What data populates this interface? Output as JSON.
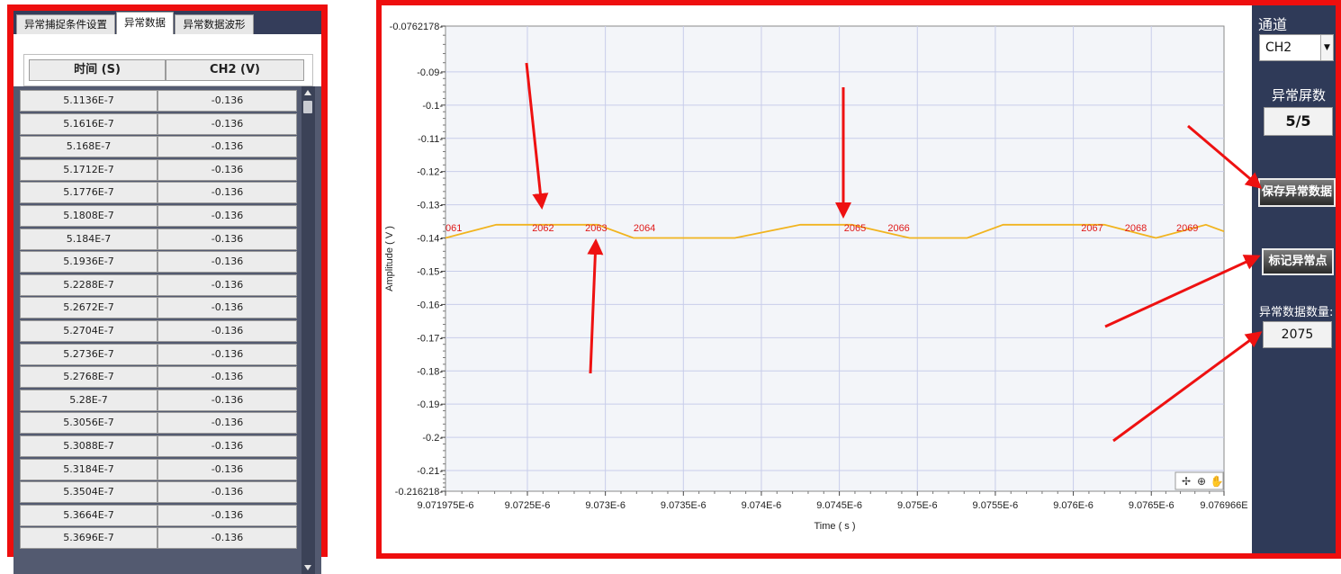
{
  "tabs": [
    {
      "label": "异常捕捉条件设置"
    },
    {
      "label": "异常数据"
    },
    {
      "label": "异常数据波形"
    }
  ],
  "table": {
    "columns": [
      "时间 (S)",
      "CH2 (V)"
    ],
    "rows": [
      [
        "5.1136E-7",
        "-0.136"
      ],
      [
        "5.1616E-7",
        "-0.136"
      ],
      [
        "5.168E-7",
        "-0.136"
      ],
      [
        "5.1712E-7",
        "-0.136"
      ],
      [
        "5.1776E-7",
        "-0.136"
      ],
      [
        "5.1808E-7",
        "-0.136"
      ],
      [
        "5.184E-7",
        "-0.136"
      ],
      [
        "5.1936E-7",
        "-0.136"
      ],
      [
        "5.2288E-7",
        "-0.136"
      ],
      [
        "5.2672E-7",
        "-0.136"
      ],
      [
        "5.2704E-7",
        "-0.136"
      ],
      [
        "5.2736E-7",
        "-0.136"
      ],
      [
        "5.2768E-7",
        "-0.136"
      ],
      [
        "5.28E-7",
        "-0.136"
      ],
      [
        "5.3056E-7",
        "-0.136"
      ],
      [
        "5.3088E-7",
        "-0.136"
      ],
      [
        "5.3184E-7",
        "-0.136"
      ],
      [
        "5.3504E-7",
        "-0.136"
      ],
      [
        "5.3664E-7",
        "-0.136"
      ],
      [
        "5.3696E-7",
        "-0.136"
      ]
    ]
  },
  "chart_data": {
    "type": "line",
    "xlabel": "Time ( s )",
    "ylabel": "Amplitude ( V )",
    "xlim": [
      9.071975e-06,
      9.076966e-06
    ],
    "ylim": [
      -0.216218,
      -0.0762178
    ],
    "x_ticks": [
      "9.071975E-6",
      "9.0725E-6",
      "9.073E-6",
      "9.0735E-6",
      "9.074E-6",
      "9.0745E-6",
      "9.075E-6",
      "9.0755E-6",
      "9.076E-6",
      "9.0765E-6",
      "9.076966E"
    ],
    "y_ticks": [
      "-0.0762178",
      "-0.09",
      "-0.1",
      "-0.11",
      "-0.12",
      "-0.13",
      "-0.14",
      "-0.15",
      "-0.16",
      "-0.17",
      "-0.18",
      "-0.19",
      "-0.2",
      "-0.21",
      "-0.216218"
    ],
    "series": [
      {
        "color": "#f1b41f",
        "x": [
          9.071975e-06,
          9.0723e-06,
          9.07295e-06,
          9.07318e-06,
          9.07383e-06,
          9.07425e-06,
          9.07458e-06,
          9.07495e-06,
          9.07532e-06,
          9.07555e-06,
          9.07598e-06,
          9.0762e-06,
          9.07653e-06,
          9.07685e-06,
          9.076966e-06
        ],
        "y": [
          -0.14,
          -0.136,
          -0.136,
          -0.14,
          -0.14,
          -0.136,
          -0.136,
          -0.14,
          -0.14,
          -0.136,
          -0.136,
          -0.136,
          -0.14,
          -0.136,
          -0.138
        ]
      }
    ],
    "markers": [
      {
        "label": "061",
        "x": 9.071975e-06
      },
      {
        "label": "2062",
        "x": 9.07253e-06
      },
      {
        "label": "2063",
        "x": 9.07287e-06
      },
      {
        "label": "2064",
        "x": 9.07318e-06
      },
      {
        "label": "2065",
        "x": 9.07453e-06
      },
      {
        "label": "2066",
        "x": 9.07481e-06
      },
      {
        "label": "2067",
        "x": 9.07605e-06
      },
      {
        "label": "2068",
        "x": 9.07633e-06
      },
      {
        "label": "2069",
        "x": 9.07666e-06
      }
    ],
    "marker_color": "#e01a1a",
    "grid": true,
    "background": "#f3f5f9",
    "grid_color": "#c8cdea"
  },
  "palette_tools": [
    "✢",
    "⊕",
    "✋"
  ],
  "side": {
    "channel_label": "通道",
    "channel_value": "CH2",
    "screens_label": "异常屏数",
    "screens_value": "5/5",
    "save_button": "保存异常数据",
    "mark_button": "标记异常点",
    "count_label": "异常数据数量:",
    "count_value": "2075"
  },
  "colors": {
    "frame": "#ee0e0e",
    "panel": "#2f3a58",
    "trace": "#f1b41f",
    "annotation": "#ee1111"
  }
}
